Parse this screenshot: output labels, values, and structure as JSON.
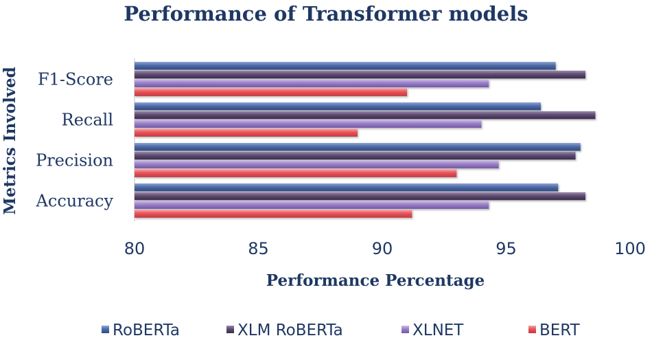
{
  "chart_data": {
    "type": "bar",
    "orientation": "horizontal",
    "title": "Performance of Transformer models",
    "xlabel": "Performance Percentage",
    "ylabel": "Metrics Involved",
    "xlim": [
      80,
      100
    ],
    "xticks": [
      "80",
      "85",
      "90",
      "95",
      "100"
    ],
    "categories": [
      "F1-Score",
      "Recall",
      "Precision",
      "Accuracy"
    ],
    "series": [
      {
        "name": "RoBERTa",
        "color": "#4f6ca8",
        "values": [
          97.0,
          96.4,
          98.0,
          97.1
        ]
      },
      {
        "name": "XLM RoBERTa",
        "color": "#5f4c72",
        "values": [
          98.2,
          98.6,
          97.8,
          98.2
        ]
      },
      {
        "name": "XLNET",
        "color": "#9a80c6",
        "values": [
          94.3,
          94.0,
          94.7,
          94.3
        ]
      },
      {
        "name": "BERT",
        "color": "#e8545a",
        "values": [
          91.0,
          89.0,
          93.0,
          91.2
        ]
      }
    ],
    "grid": false,
    "legend_position": "bottom"
  }
}
